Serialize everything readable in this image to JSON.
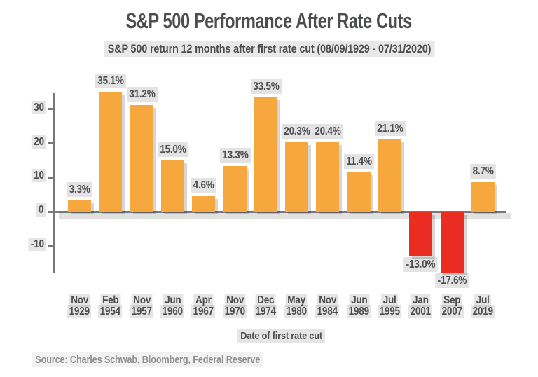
{
  "title": "S&P 500 Performance After Rate Cuts",
  "subtitle": "S&P 500 return 12 months after first rate cut (08/09/1929 - 07/31/2020)",
  "source": "Source: Charles Schwab, Bloomberg, Federal Reserve",
  "colors": {
    "positive_bar": "#F6A83F",
    "negative_bar": "#EB2C23",
    "axis": "#77787A",
    "text": "#4B4C4E",
    "muted_text": "#8F9092"
  },
  "chart_data": {
    "type": "bar",
    "title": "S&P 500 Performance After Rate Cuts",
    "subtitle": "S&P 500 return 12 months after first rate cut (08/09/1929 - 07/31/2020)",
    "xlabel": "Date of first rate cut",
    "ylabel": "",
    "ylim": [
      -20,
      37
    ],
    "grid": false,
    "legend": "none",
    "ytick_values": [
      30,
      20,
      10,
      0,
      -10
    ],
    "ytick_labels": [
      "30",
      "20",
      "10",
      "0",
      "-10"
    ],
    "categories": [
      {
        "month": "Nov",
        "year": "1929"
      },
      {
        "month": "Feb",
        "year": "1954"
      },
      {
        "month": "Nov",
        "year": "1957"
      },
      {
        "month": "Jun",
        "year": "1960"
      },
      {
        "month": "Apr",
        "year": "1967"
      },
      {
        "month": "Nov",
        "year": "1970"
      },
      {
        "month": "Dec",
        "year": "1974"
      },
      {
        "month": "May",
        "year": "1980"
      },
      {
        "month": "Nov",
        "year": "1984"
      },
      {
        "month": "Jun",
        "year": "1989"
      },
      {
        "month": "Jul",
        "year": "1995"
      },
      {
        "month": "Jan",
        "year": "2001"
      },
      {
        "month": "Sep",
        "year": "2007"
      },
      {
        "month": "Jul",
        "year": "2019"
      }
    ],
    "values": [
      3.3,
      35.1,
      31.2,
      15.0,
      4.6,
      13.3,
      33.5,
      20.3,
      20.4,
      11.4,
      21.1,
      -13.0,
      -17.6,
      8.7
    ],
    "bar_labels": [
      "3.3%",
      "35.1%",
      "31.2%",
      "15.0%",
      "4.6%",
      "13.3%",
      "33.5%",
      "20.3%",
      "20.4%",
      "11.4%",
      "21.1%",
      "-13.0%",
      "-17.6%",
      "8.7%"
    ],
    "positive_color": "#F6A83F",
    "negative_color": "#EB2C23"
  }
}
